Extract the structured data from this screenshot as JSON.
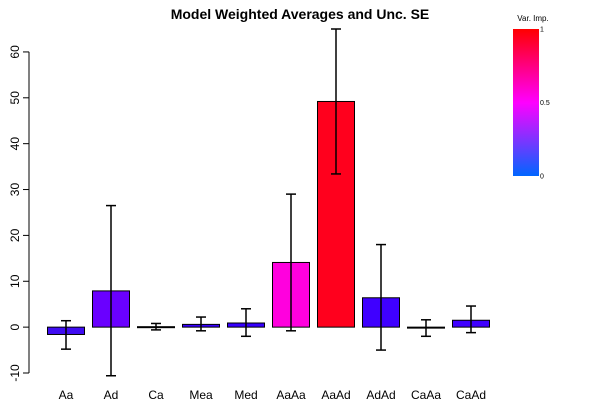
{
  "chart_data": {
    "type": "bar",
    "title": "Model Weighted Averages and Unc. SE",
    "xlabel": "",
    "ylabel": "",
    "categories": [
      "Aa",
      "Ad",
      "Ca",
      "Mea",
      "Med",
      "AaAa",
      "AaAd",
      "AdAd",
      "CaAa",
      "CaAd"
    ],
    "values": [
      -1.6,
      7.9,
      0.1,
      0.6,
      0.9,
      14.1,
      49.2,
      6.4,
      -0.2,
      1.5
    ],
    "error_low": [
      -4.8,
      -10.6,
      -0.6,
      -0.8,
      -2.0,
      -0.8,
      33.4,
      -5.0,
      -2.0,
      -1.2
    ],
    "error_high": [
      1.4,
      26.5,
      0.8,
      2.2,
      4.0,
      29.0,
      65.0,
      18.0,
      1.6,
      4.6
    ],
    "importance": [
      0.12,
      0.18,
      0.12,
      0.12,
      0.12,
      0.72,
      1.0,
      0.14,
      0.12,
      0.12
    ],
    "bar_colors": [
      "#3f0cf2",
      "#6a00ff",
      "#3700ff",
      "#3700ff",
      "#3700ff",
      "#ff00de",
      "#ff001d",
      "#3f00ff",
      "#3700ff",
      "#3f00ff"
    ],
    "ylim": [
      -10,
      65
    ],
    "yticks": [
      -10,
      0,
      10,
      20,
      30,
      40,
      50,
      60
    ],
    "grid": false,
    "legend": {
      "title": "Var. Imp.",
      "placement": "top-right",
      "ticks": [
        {
          "value": 0,
          "label": "0"
        },
        {
          "value": 0.5,
          "label": "0.5"
        },
        {
          "value": 1,
          "label": "1"
        }
      ],
      "colors": [
        "#0066ff",
        "#ff00ff",
        "#ff0000"
      ]
    }
  }
}
